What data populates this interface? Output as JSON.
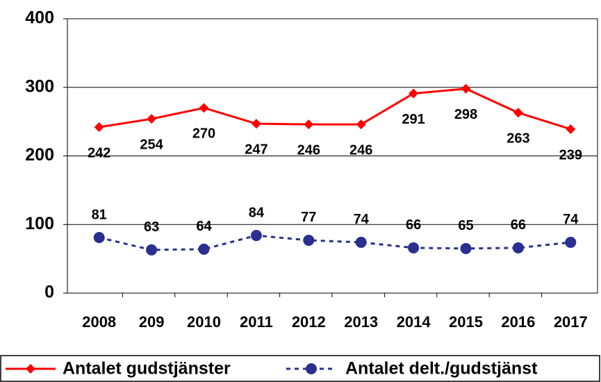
{
  "chart_data": {
    "type": "line",
    "categories": [
      "2008",
      "209",
      "2010",
      "2011",
      "2012",
      "2013",
      "2014",
      "2015",
      "2016",
      "2017"
    ],
    "series": [
      {
        "name": "Antalet gudstjänster",
        "color": "#ff0000",
        "marker": "diamond",
        "dashed": false,
        "label_position": "below",
        "values": [
          242,
          254,
          270,
          247,
          246,
          246,
          291,
          298,
          263,
          239
        ]
      },
      {
        "name": "Antalet delt./gudstjänst",
        "color": "#2b2f8f",
        "marker": "circle",
        "dashed": true,
        "label_position": "above",
        "values": [
          81,
          63,
          64,
          84,
          77,
          74,
          66,
          65,
          66,
          74
        ]
      }
    ],
    "ylim": [
      0,
      400
    ],
    "yticks": [
      0,
      100,
      200,
      300,
      400
    ],
    "grid": true,
    "legend": "bottom"
  }
}
